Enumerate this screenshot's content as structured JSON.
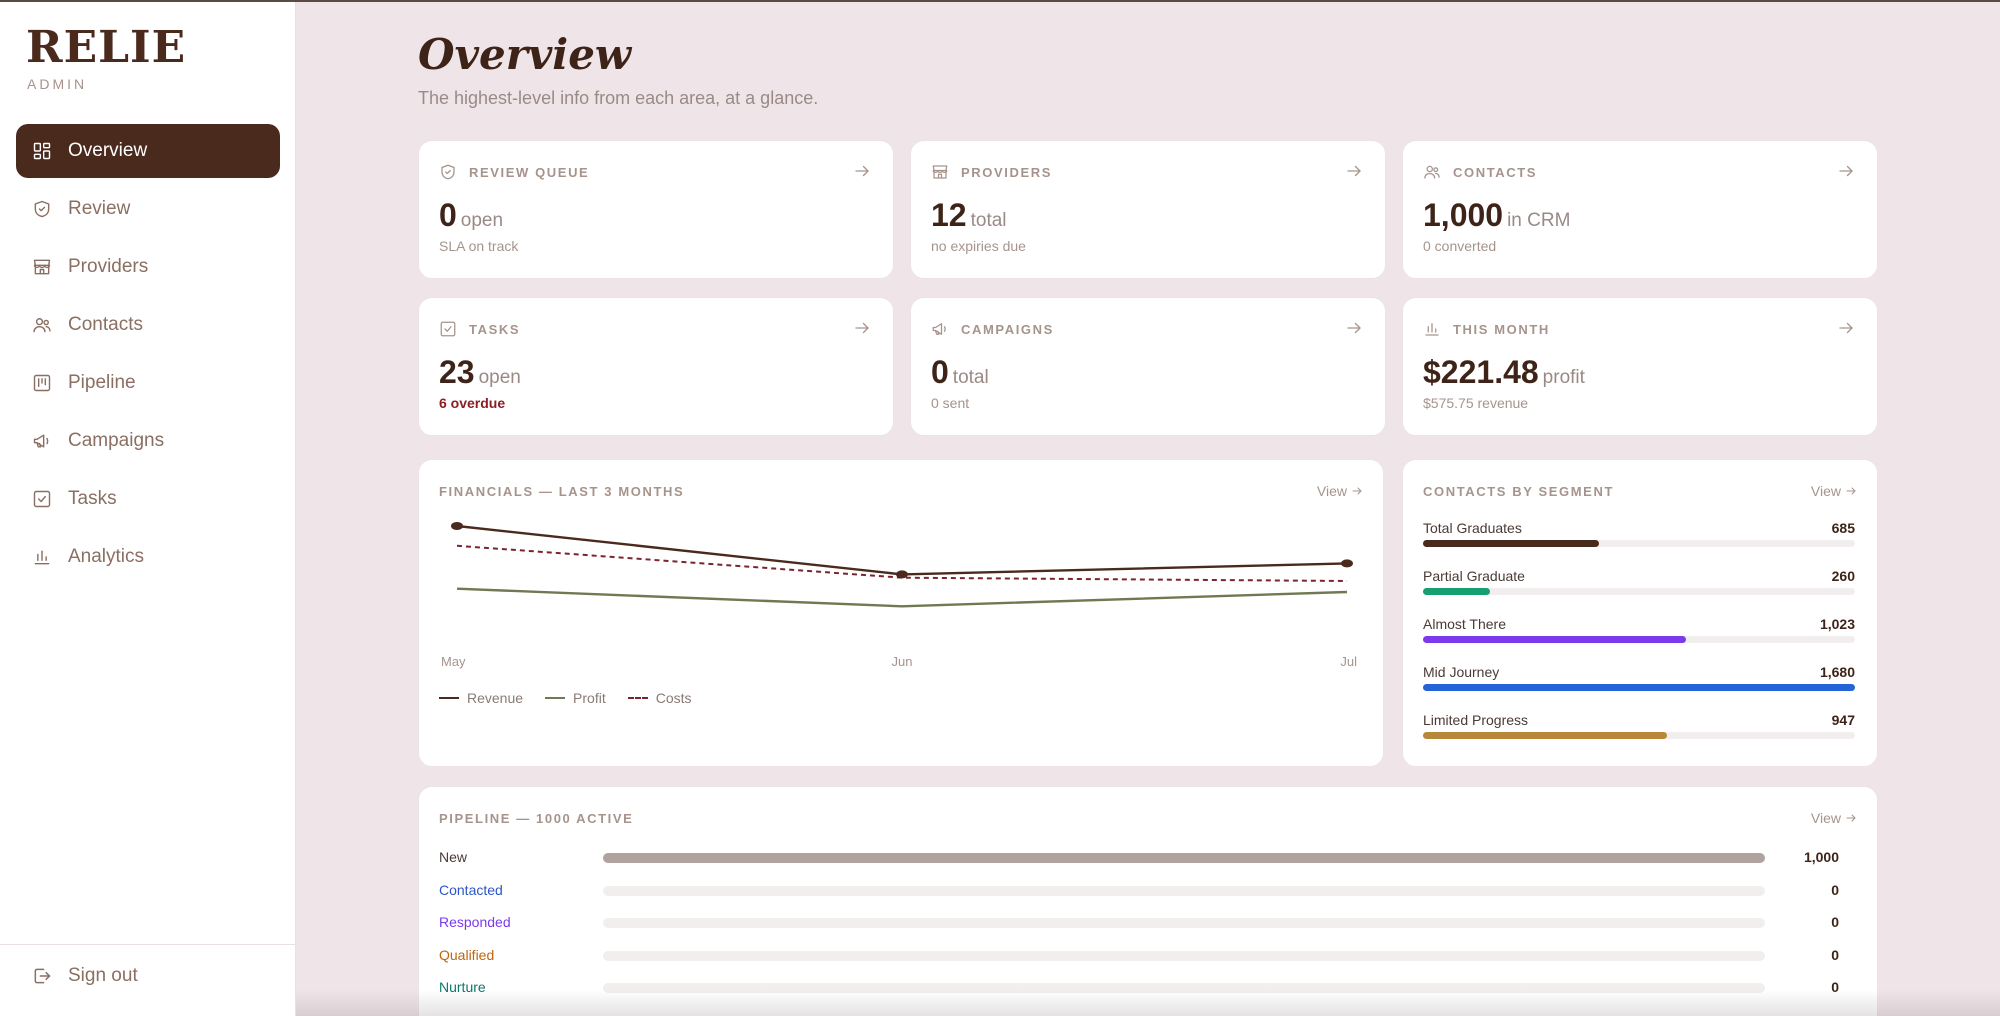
{
  "brand": {
    "name": "RELIE",
    "sub": "ADMIN"
  },
  "nav": [
    {
      "label": "Overview",
      "icon": "layout-grid-icon",
      "active": true
    },
    {
      "label": "Review",
      "icon": "shield-check-icon"
    },
    {
      "label": "Providers",
      "icon": "storefront-icon"
    },
    {
      "label": "Contacts",
      "icon": "users-icon"
    },
    {
      "label": "Pipeline",
      "icon": "kanban-icon"
    },
    {
      "label": "Campaigns",
      "icon": "megaphone-icon"
    },
    {
      "label": "Tasks",
      "icon": "checkbox-icon"
    },
    {
      "label": "Analytics",
      "icon": "bar-chart-icon"
    }
  ],
  "signout": {
    "label": "Sign out",
    "icon": "sign-out-icon"
  },
  "header": {
    "title": "Overview",
    "subtitle": "The highest-level info from each area, at a glance."
  },
  "stats": [
    {
      "title": "REVIEW QUEUE",
      "icon": "shield-check-icon",
      "value": "0",
      "unit": "open",
      "note": "SLA on track",
      "alert": false
    },
    {
      "title": "PROVIDERS",
      "icon": "storefront-icon",
      "value": "12",
      "unit": "total",
      "note": "no expiries due",
      "alert": false
    },
    {
      "title": "CONTACTS",
      "icon": "users-icon",
      "value": "1,000",
      "unit": "in CRM",
      "note": "0 converted",
      "alert": false
    },
    {
      "title": "TASKS",
      "icon": "checkbox-icon",
      "value": "23",
      "unit": "open",
      "note": "6 overdue",
      "alert": true
    },
    {
      "title": "CAMPAIGNS",
      "icon": "megaphone-icon",
      "value": "0",
      "unit": "total",
      "note": "0 sent",
      "alert": false
    },
    {
      "title": "THIS MONTH",
      "icon": "bar-chart-icon",
      "value": "$221.48",
      "unit": "profit",
      "note": "$575.75 revenue",
      "alert": false
    }
  ],
  "financials": {
    "title": "FINANCIALS — LAST 3 MONTHS",
    "view_label": "View"
  },
  "segments": {
    "title": "CONTACTS BY SEGMENT",
    "view_label": "View",
    "max": 1680,
    "items": [
      {
        "label": "Total Graduates",
        "value": 685,
        "display": "685",
        "color": "#4a2a1c"
      },
      {
        "label": "Partial Graduate",
        "value": 260,
        "display": "260",
        "color": "#17a06f"
      },
      {
        "label": "Almost There",
        "value": 1023,
        "display": "1,023",
        "color": "#7c3aed"
      },
      {
        "label": "Mid Journey",
        "value": 1680,
        "display": "1,680",
        "color": "#2563d9"
      },
      {
        "label": "Limited Progress",
        "value": 947,
        "display": "947",
        "color": "#b7883a"
      }
    ]
  },
  "pipeline": {
    "title": "PIPELINE — 1000 ACTIVE",
    "view_label": "View",
    "max": 1000,
    "stages": [
      {
        "label": "New",
        "value": 1000,
        "display": "1,000",
        "color": "#4a3a34"
      },
      {
        "label": "Contacted",
        "value": 0,
        "display": "0",
        "color": "#2f56c9"
      },
      {
        "label": "Responded",
        "value": 0,
        "display": "0",
        "color": "#7c3aed"
      },
      {
        "label": "Qualified",
        "value": 0,
        "display": "0",
        "color": "#c0650f"
      },
      {
        "label": "Nurture",
        "value": 0,
        "display": "0",
        "color": "#0f766e"
      }
    ]
  },
  "chart_data": {
    "type": "line",
    "x": [
      "May",
      "Jun",
      "Jul"
    ],
    "series": [
      {
        "name": "Revenue",
        "values": [
          1000,
          560,
          660
        ],
        "color": "#4a2a1c",
        "style": "solid"
      },
      {
        "name": "Profit",
        "values": [
          430,
          270,
          400
        ],
        "color": "#6f7a52",
        "style": "solid"
      },
      {
        "name": "Costs",
        "values": [
          820,
          530,
          500
        ],
        "color": "#7a2430",
        "style": "dashed"
      }
    ],
    "ylim": [
      0,
      1000
    ],
    "grid": false,
    "legend": "bottom-left"
  }
}
